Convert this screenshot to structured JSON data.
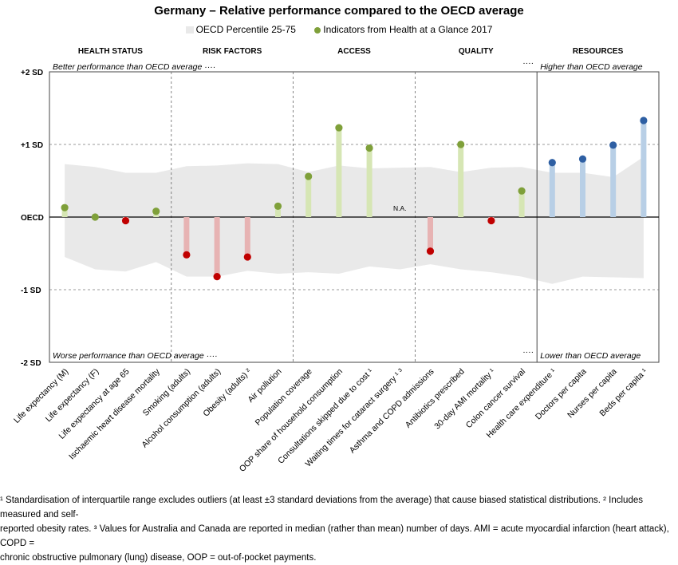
{
  "title": "Germany – Relative performance compared to the OECD average",
  "legend": {
    "band_label": "OECD Percentile 25-75",
    "dots_label": "Indicators from Health at a Glance 2017"
  },
  "groups": [
    "HEALTH STATUS",
    "RISK FACTORS",
    "ACCESS",
    "QUALITY",
    "RESOURCES"
  ],
  "annotations": {
    "top_left": "Better performance than OECD average",
    "bottom_left": "Worse performance than OECD average",
    "top_right": "Higher than OECD average",
    "bottom_right": "Lower than OECD average",
    "left_dots": "····",
    "right_dots": "····",
    "na": "N.A."
  },
  "chart_data": {
    "type": "scatter",
    "y_unit": "standard deviations from OECD average",
    "ylim": [
      -2,
      2
    ],
    "y_ticks": [
      {
        "value": 2,
        "label": "+2 SD"
      },
      {
        "value": 1,
        "label": "+1 SD"
      },
      {
        "value": 0,
        "label": "OECD"
      },
      {
        "value": -1,
        "label": "-1 SD"
      },
      {
        "value": -2,
        "label": "-2 SD"
      }
    ],
    "categories": [
      "Life expectancy (M)",
      "Life expectancy (F)",
      "Life expectancy at age 65",
      "Ischaemic heart disease mortality",
      "Smoking (adults)",
      "Alcohol consumption (adults)",
      "Obesity (adults) ²",
      "Air pollution",
      "Population coverage",
      "OOP share of household consumption",
      "Consultations skipped due to cost ¹",
      "Waiting times for cataract surgery ¹ ³",
      "Asthma and COPD admissions",
      "Antibiotics prescribed",
      "30-day AMI mortality ¹",
      "Colon cancer survival",
      "Health care expenditure ¹",
      "Doctors per capita",
      "Nurses per capita",
      "Beds per capita ¹"
    ],
    "groups": [
      {
        "name": "HEALTH STATUS",
        "from": 0,
        "to": 3
      },
      {
        "name": "RISK FACTORS",
        "from": 4,
        "to": 7
      },
      {
        "name": "ACCESS",
        "from": 8,
        "to": 11
      },
      {
        "name": "QUALITY",
        "from": 12,
        "to": 15
      },
      {
        "name": "RESOURCES",
        "from": 16,
        "to": 19
      }
    ],
    "values": [
      0.13,
      0.0,
      -0.05,
      0.08,
      -0.52,
      -0.82,
      -0.55,
      0.15,
      0.56,
      1.23,
      0.95,
      null,
      -0.47,
      1.0,
      -0.05,
      0.36,
      0.75,
      0.8,
      0.99,
      1.33
    ],
    "band_p25": [
      -0.55,
      -0.72,
      -0.75,
      -0.62,
      -0.82,
      -0.82,
      -0.74,
      -0.78,
      -0.76,
      -0.78,
      -0.68,
      -0.72,
      -0.65,
      -0.72,
      -0.76,
      -0.82,
      -0.92,
      -0.82,
      -0.83,
      -0.84
    ],
    "band_p75": [
      0.73,
      0.69,
      0.61,
      0.61,
      0.7,
      0.71,
      0.74,
      0.73,
      0.62,
      0.71,
      0.67,
      0.68,
      0.69,
      0.62,
      0.68,
      0.69,
      0.61,
      0.61,
      0.55,
      0.83
    ],
    "series": [
      {
        "name": "Indicators from Health at a Glance 2017",
        "values": [
          0.13,
          0.0,
          -0.05,
          0.08,
          -0.52,
          -0.82,
          -0.55,
          0.15,
          0.56,
          1.23,
          0.95,
          null,
          -0.47,
          1.0,
          -0.05,
          0.36,
          0.75,
          0.8,
          0.99,
          1.33
        ]
      }
    ],
    "colors": {
      "positive_bar": "#d6e6b4",
      "positive_dot": "#7fa03a",
      "negative_bar": "#e7b3b3",
      "negative_dot": "#c00000",
      "resource_bar": "#b8cfe6",
      "resource_dot": "#2e5fa3",
      "band": "#e9e9e9"
    },
    "grid": "dashed at ±1 SD",
    "legend_position": "top-center"
  },
  "footnote": {
    "line1": "¹ Standardisation of interquartile range excludes outliers (at least ±3 standard deviations from the average) that cause biased statistical distributions. ² Includes measured and self-",
    "line2": "reported obesity rates. ³ Values for Australia and Canada are reported in median (rather than mean) number of days. AMI = acute myocardial infarction (heart attack), COPD =",
    "line3": "chronic obstructive pulmonary (lung) disease, OOP = out-of-pocket payments."
  }
}
